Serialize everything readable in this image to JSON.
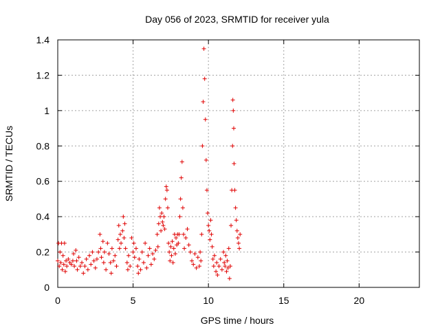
{
  "chart_data": {
    "type": "scatter",
    "title": "Day 056 of 2023, SRMTID for receiver yula",
    "xlabel": "GPS time / hours",
    "ylabel": "SRMTID / TECUs",
    "xlim": [
      0,
      24
    ],
    "ylim": [
      0,
      1.4
    ],
    "xticks": [
      0,
      5,
      10,
      15,
      20
    ],
    "yticks": [
      0,
      0.2,
      0.4,
      0.6,
      0.8,
      1,
      1.2,
      1.4
    ],
    "ytick_labels": [
      "0",
      "0.2",
      "0.4",
      "0.6",
      "0.8",
      "1",
      "1.2",
      "1.4"
    ],
    "grid": true,
    "marker": "+",
    "color": "#e00000",
    "series": [
      {
        "name": "yula",
        "points": [
          [
            0.0,
            0.15
          ],
          [
            0.05,
            0.25
          ],
          [
            0.1,
            0.12
          ],
          [
            0.15,
            0.2
          ],
          [
            0.2,
            0.14
          ],
          [
            0.25,
            0.25
          ],
          [
            0.3,
            0.1
          ],
          [
            0.35,
            0.18
          ],
          [
            0.4,
            0.13
          ],
          [
            0.45,
            0.25
          ],
          [
            0.5,
            0.09
          ],
          [
            0.55,
            0.15
          ],
          [
            0.6,
            0.12
          ],
          [
            0.7,
            0.16
          ],
          [
            0.8,
            0.14
          ],
          [
            0.9,
            0.13
          ],
          [
            1.0,
            0.15
          ],
          [
            1.05,
            0.19
          ],
          [
            1.1,
            0.12
          ],
          [
            1.2,
            0.21
          ],
          [
            1.25,
            0.15
          ],
          [
            1.3,
            0.1
          ],
          [
            1.4,
            0.17
          ],
          [
            1.5,
            0.12
          ],
          [
            1.6,
            0.14
          ],
          [
            1.7,
            0.08
          ],
          [
            1.8,
            0.12
          ],
          [
            1.9,
            0.16
          ],
          [
            2.0,
            0.1
          ],
          [
            2.1,
            0.18
          ],
          [
            2.2,
            0.13
          ],
          [
            2.3,
            0.2
          ],
          [
            2.4,
            0.15
          ],
          [
            2.5,
            0.11
          ],
          [
            2.6,
            0.16
          ],
          [
            2.7,
            0.2
          ],
          [
            2.8,
            0.3
          ],
          [
            2.85,
            0.22
          ],
          [
            2.9,
            0.17
          ],
          [
            3.0,
            0.26
          ],
          [
            3.05,
            0.14
          ],
          [
            3.1,
            0.2
          ],
          [
            3.2,
            0.1
          ],
          [
            3.3,
            0.25
          ],
          [
            3.4,
            0.19
          ],
          [
            3.5,
            0.14
          ],
          [
            3.55,
            0.08
          ],
          [
            3.6,
            0.22
          ],
          [
            3.7,
            0.15
          ],
          [
            3.8,
            0.18
          ],
          [
            3.9,
            0.12
          ],
          [
            4.0,
            0.27
          ],
          [
            4.05,
            0.35
          ],
          [
            4.1,
            0.22
          ],
          [
            4.15,
            0.3
          ],
          [
            4.2,
            0.25
          ],
          [
            4.3,
            0.32
          ],
          [
            4.35,
            0.4
          ],
          [
            4.4,
            0.28
          ],
          [
            4.45,
            0.36
          ],
          [
            4.5,
            0.22
          ],
          [
            4.6,
            0.14
          ],
          [
            4.65,
            0.1
          ],
          [
            4.7,
            0.18
          ],
          [
            4.8,
            0.12
          ],
          [
            4.9,
            0.28
          ],
          [
            5.0,
            0.2
          ],
          [
            5.05,
            0.25
          ],
          [
            5.1,
            0.17
          ],
          [
            5.2,
            0.22
          ],
          [
            5.3,
            0.12
          ],
          [
            5.35,
            0.08
          ],
          [
            5.4,
            0.16
          ],
          [
            5.5,
            0.1
          ],
          [
            5.6,
            0.2
          ],
          [
            5.7,
            0.14
          ],
          [
            5.8,
            0.25
          ],
          [
            5.9,
            0.11
          ],
          [
            6.0,
            0.18
          ],
          [
            6.1,
            0.22
          ],
          [
            6.2,
            0.13
          ],
          [
            6.3,
            0.19
          ],
          [
            6.4,
            0.16
          ],
          [
            6.5,
            0.21
          ],
          [
            6.6,
            0.3
          ],
          [
            6.65,
            0.23
          ],
          [
            6.7,
            0.36
          ],
          [
            6.75,
            0.45
          ],
          [
            6.8,
            0.4
          ],
          [
            6.85,
            0.32
          ],
          [
            6.9,
            0.42
          ],
          [
            6.95,
            0.37
          ],
          [
            7.0,
            0.35
          ],
          [
            7.05,
            0.4
          ],
          [
            7.1,
            0.33
          ],
          [
            7.15,
            0.5
          ],
          [
            7.2,
            0.57
          ],
          [
            7.25,
            0.55
          ],
          [
            7.3,
            0.45
          ],
          [
            7.35,
            0.25
          ],
          [
            7.4,
            0.2
          ],
          [
            7.45,
            0.15
          ],
          [
            7.5,
            0.23
          ],
          [
            7.55,
            0.18
          ],
          [
            7.6,
            0.26
          ],
          [
            7.65,
            0.14
          ],
          [
            7.7,
            0.22
          ],
          [
            7.75,
            0.3
          ],
          [
            7.8,
            0.19
          ],
          [
            7.85,
            0.28
          ],
          [
            7.9,
            0.24
          ],
          [
            7.95,
            0.3
          ],
          [
            8.0,
            0.25
          ],
          [
            8.05,
            0.3
          ],
          [
            8.1,
            0.4
          ],
          [
            8.15,
            0.5
          ],
          [
            8.2,
            0.62
          ],
          [
            8.25,
            0.71
          ],
          [
            8.3,
            0.45
          ],
          [
            8.35,
            0.3
          ],
          [
            8.4,
            0.22
          ],
          [
            8.5,
            0.28
          ],
          [
            8.6,
            0.33
          ],
          [
            8.7,
            0.24
          ],
          [
            8.8,
            0.2
          ],
          [
            8.9,
            0.15
          ],
          [
            9.0,
            0.13
          ],
          [
            9.1,
            0.19
          ],
          [
            9.2,
            0.11
          ],
          [
            9.3,
            0.17
          ],
          [
            9.4,
            0.12
          ],
          [
            9.45,
            0.2
          ],
          [
            9.5,
            0.15
          ],
          [
            9.55,
            0.3
          ],
          [
            9.6,
            0.8
          ],
          [
            9.65,
            1.05
          ],
          [
            9.7,
            1.35
          ],
          [
            9.75,
            1.18
          ],
          [
            9.8,
            0.95
          ],
          [
            9.85,
            0.72
          ],
          [
            9.9,
            0.55
          ],
          [
            9.95,
            0.42
          ],
          [
            10.0,
            0.35
          ],
          [
            10.05,
            0.32
          ],
          [
            10.1,
            0.27
          ],
          [
            10.15,
            0.38
          ],
          [
            10.2,
            0.3
          ],
          [
            10.25,
            0.23
          ],
          [
            10.3,
            0.16
          ],
          [
            10.35,
            0.12
          ],
          [
            10.4,
            0.18
          ],
          [
            10.5,
            0.09
          ],
          [
            10.55,
            0.14
          ],
          [
            10.6,
            0.07
          ],
          [
            10.7,
            0.12
          ],
          [
            10.8,
            0.16
          ],
          [
            10.9,
            0.1
          ],
          [
            11.0,
            0.2
          ],
          [
            11.05,
            0.14
          ],
          [
            11.1,
            0.12
          ],
          [
            11.15,
            0.18
          ],
          [
            11.2,
            0.09
          ],
          [
            11.25,
            0.15
          ],
          [
            11.3,
            0.11
          ],
          [
            11.35,
            0.22
          ],
          [
            11.4,
            0.05
          ],
          [
            11.45,
            0.12
          ],
          [
            11.5,
            0.35
          ],
          [
            11.55,
            0.55
          ],
          [
            11.6,
            0.8
          ],
          [
            11.62,
            1.06
          ],
          [
            11.65,
            1.0
          ],
          [
            11.68,
            0.9
          ],
          [
            11.7,
            0.7
          ],
          [
            11.75,
            0.55
          ],
          [
            11.8,
            0.45
          ],
          [
            11.85,
            0.38
          ],
          [
            11.9,
            0.32
          ],
          [
            11.95,
            0.28
          ],
          [
            12.0,
            0.25
          ],
          [
            12.05,
            0.22
          ],
          [
            12.1,
            0.3
          ]
        ]
      }
    ]
  }
}
